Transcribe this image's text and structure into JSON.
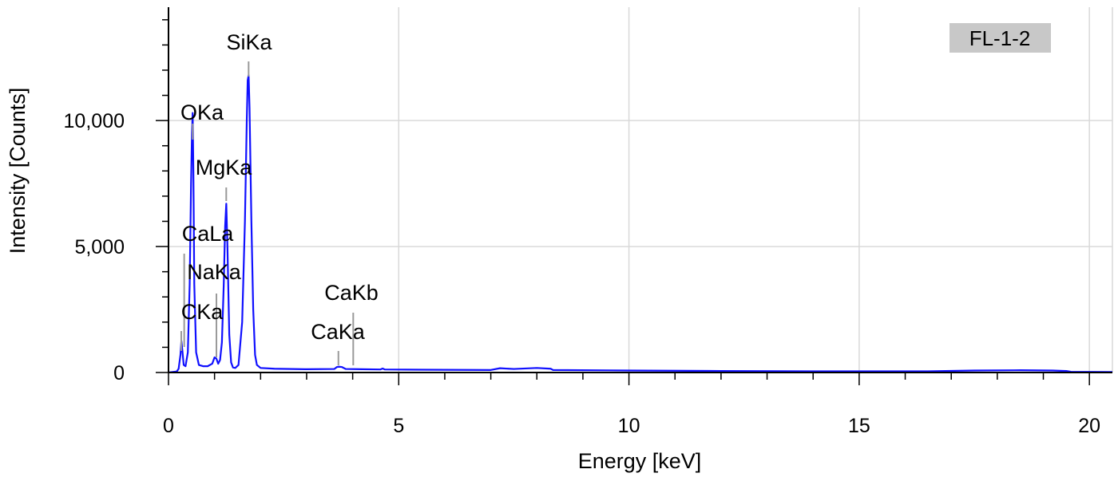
{
  "chart_data": {
    "type": "line",
    "title": "",
    "xlabel": "Energy [keV]",
    "ylabel": "Intensity [Counts]",
    "xlim": [
      0,
      20.5
    ],
    "ylim": [
      0,
      14500
    ],
    "x_ticks": [
      0,
      5,
      10,
      15,
      20
    ],
    "x_tick_labels": [
      "0",
      "5",
      "10",
      "15",
      "20"
    ],
    "y_ticks": [
      0,
      5000,
      10000
    ],
    "y_tick_labels": [
      "0",
      "5,000",
      "10,000"
    ],
    "grid": true,
    "badge": "FL-1-2",
    "colors": {
      "series": "#1010ff",
      "grid": "#d9d9d9",
      "marker": "#999999",
      "badge_bg": "#c8c8c8"
    },
    "peaks": [
      {
        "label": "CKa",
        "energy": 0.277
      },
      {
        "label": "OKa",
        "energy": 0.525
      },
      {
        "label": "CaLa",
        "energy": 0.341
      },
      {
        "label": "NaKa",
        "energy": 1.041
      },
      {
        "label": "MgKa",
        "energy": 1.254
      },
      {
        "label": "SiKa",
        "energy": 1.74
      },
      {
        "label": "CaKa",
        "energy": 3.69
      },
      {
        "label": "CaKb",
        "energy": 4.012
      }
    ],
    "series": [
      {
        "x": [
          0.0,
          0.18,
          0.22,
          0.26,
          0.28,
          0.3,
          0.33,
          0.37,
          0.42,
          0.46,
          0.49,
          0.51,
          0.525,
          0.54,
          0.56,
          0.6,
          0.66,
          0.75,
          0.85,
          0.95,
          1.0,
          1.04,
          1.08,
          1.12,
          1.16,
          1.2,
          1.23,
          1.255,
          1.28,
          1.32,
          1.36,
          1.4,
          1.45,
          1.52,
          1.6,
          1.66,
          1.7,
          1.72,
          1.74,
          1.76,
          1.8,
          1.84,
          1.88,
          1.92,
          2.0,
          2.3,
          3.0,
          3.6,
          3.66,
          3.7,
          3.76,
          3.85,
          4.2,
          4.6,
          4.65,
          4.7,
          5.5,
          7.0,
          7.2,
          7.5,
          8.0,
          8.3,
          8.35,
          10.0,
          12.0,
          14.0,
          16.5,
          17.5,
          18.5,
          19.2,
          19.5,
          19.6,
          20.5
        ],
        "y": [
          0,
          40,
          150,
          700,
          1250,
          900,
          300,
          250,
          800,
          3500,
          7500,
          9500,
          10300,
          8000,
          3500,
          800,
          300,
          250,
          250,
          350,
          600,
          550,
          350,
          500,
          1200,
          3500,
          5800,
          6700,
          5000,
          1500,
          400,
          200,
          180,
          300,
          2000,
          6000,
          10000,
          11600,
          11800,
          10500,
          6000,
          2500,
          700,
          300,
          180,
          150,
          130,
          140,
          220,
          230,
          220,
          140,
          130,
          120,
          160,
          120,
          110,
          100,
          170,
          140,
          180,
          150,
          100,
          80,
          60,
          50,
          50,
          80,
          90,
          80,
          60,
          30,
          20
        ]
      }
    ]
  }
}
